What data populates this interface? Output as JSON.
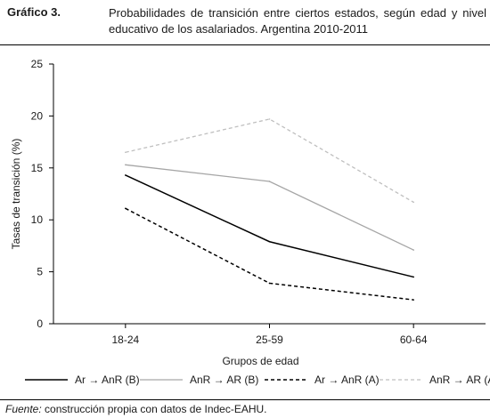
{
  "figure": {
    "label": "Gráfico 3.",
    "title": "Probabilidades de transición entre ciertos estados, según edad y nivel educativo de los asalariados. Argentina 2010-2011"
  },
  "source": {
    "prefix": "Fuente:",
    "text": " construcción propia con datos de Indec-EAHU."
  },
  "chart_data": {
    "type": "line",
    "categories": [
      "18-24",
      "25-59",
      "60-64"
    ],
    "xlabel": "Grupos de edad",
    "ylabel": "Tasas de transición (%)",
    "ylim": [
      0,
      25
    ],
    "yticks": [
      0,
      5,
      10,
      15,
      20,
      25
    ],
    "grid": false,
    "legend_position": "bottom",
    "series": [
      {
        "name": "Ar → AnR (B)",
        "values": [
          14.3,
          7.9,
          4.5
        ],
        "color": "#000000",
        "dash": "solid"
      },
      {
        "name": "AnR → AR (B)",
        "values": [
          15.3,
          13.7,
          7.1
        ],
        "color": "#a6a6a6",
        "dash": "solid"
      },
      {
        "name": "Ar → AnR (A)",
        "values": [
          11.1,
          3.9,
          2.3
        ],
        "color": "#000000",
        "dash": "dashed"
      },
      {
        "name": "AnR → AR (A)",
        "values": [
          16.5,
          19.7,
          11.7
        ],
        "color": "#bfbfbf",
        "dash": "dashed"
      }
    ]
  }
}
